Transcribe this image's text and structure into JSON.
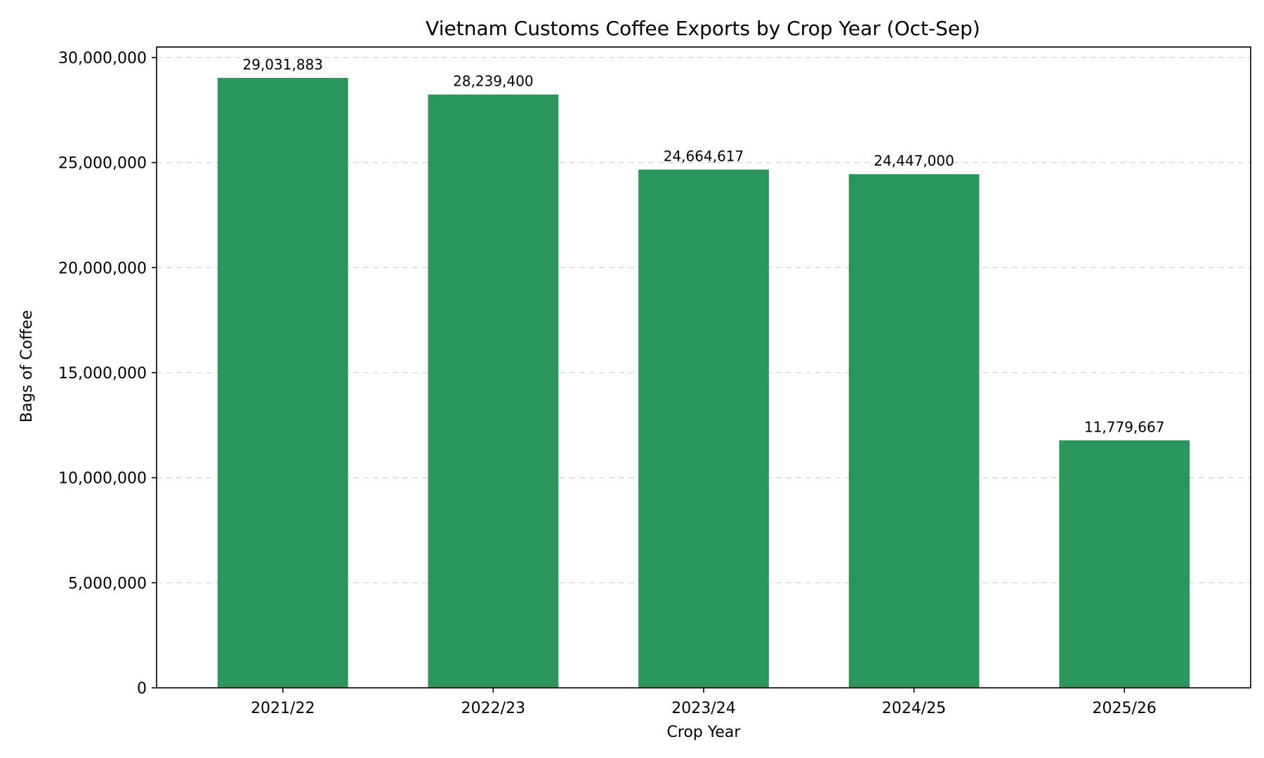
{
  "chart_data": {
    "type": "bar",
    "title": "Vietnam Customs Coffee Exports by Crop Year (Oct-Sep)",
    "xlabel": "Crop Year",
    "ylabel": "Bags of Coffee",
    "categories": [
      "2021/22",
      "2022/23",
      "2023/24",
      "2024/25",
      "2025/26"
    ],
    "values": [
      29031883,
      28239400,
      24664617,
      24447000,
      11779667
    ],
    "data_labels": [
      "29,031,883",
      "28,239,400",
      "24,664,617",
      "24,447,000",
      "11,779,667"
    ],
    "ylim": [
      0,
      30500000
    ],
    "yticks": [
      0,
      5000000,
      10000000,
      15000000,
      20000000,
      25000000,
      30000000
    ],
    "ytick_labels": [
      "0",
      "5,000,000",
      "10,000,000",
      "15,000,000",
      "20,000,000",
      "25,000,000",
      "30,000,000"
    ],
    "grid": "y-dashed",
    "legend": "none",
    "bar_color": "#2a965c"
  }
}
